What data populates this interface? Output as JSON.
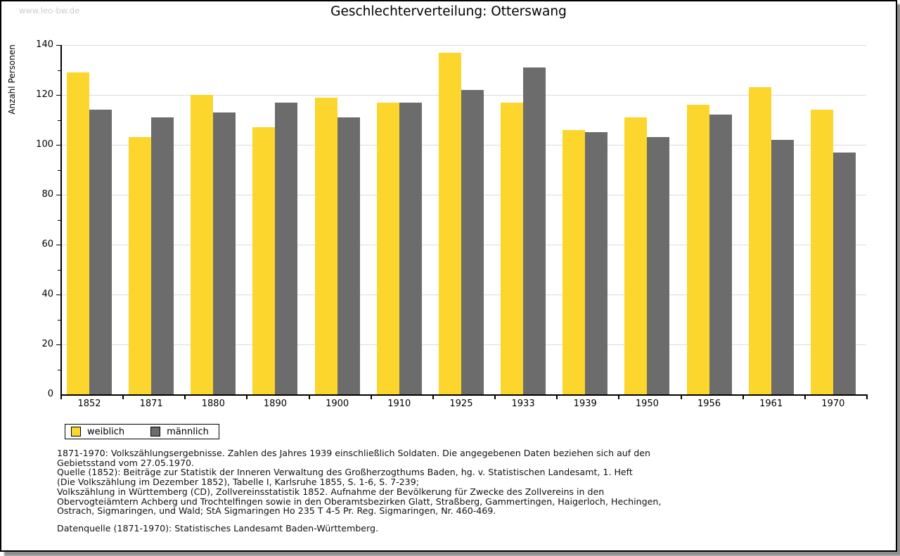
{
  "watermark": "www.leo-bw.de",
  "title": "Geschlechterverteilung: Otterswang",
  "chart_data": {
    "type": "bar",
    "categories": [
      "1852",
      "1871",
      "1880",
      "1890",
      "1900",
      "1910",
      "1925",
      "1933",
      "1939",
      "1950",
      "1956",
      "1961",
      "1970"
    ],
    "series": [
      {
        "name": "weiblich",
        "color": "#FCD52D",
        "values": [
          129,
          103,
          120,
          107,
          119,
          117,
          137,
          117,
          106,
          111,
          116,
          123,
          114
        ]
      },
      {
        "name": "männlich",
        "color": "#6C6C6C",
        "values": [
          114,
          111,
          113,
          117,
          111,
          117,
          122,
          131,
          105,
          103,
          112,
          102,
          97
        ]
      }
    ],
    "title": "Geschlechterverteilung: Otterswang",
    "xlabel": "",
    "ylabel": "Anzahl Personen",
    "ylim": [
      0,
      140
    ],
    "yticks": [
      0,
      20,
      40,
      60,
      80,
      100,
      120,
      140
    ],
    "ytick_minor_interval": 10,
    "grid": true,
    "legend_position": "bottom-left",
    "grid_color": "#dcdcdc",
    "axis_color": "#000000"
  },
  "footnotes": [
    "1871-1970: Volkszählungsergebnisse. Zahlen des Jahres 1939 einschließlich Soldaten. Die angegebenen Daten beziehen sich auf den",
    "Gebietsstand vom 27.05.1970.",
    "Quelle (1852): Beiträge zur Statistik der Inneren Verwaltung des Großherzogthums Baden, hg. v. Statistischen Landesamt, 1. Heft",
    "(Die Volkszählung im Dezember 1852), Tabelle I, Karlsruhe 1855, S. 1-6, S. 7-239;",
    "Volkszählung in Württemberg (CD), Zollvereinsstatistik 1852. Aufnahme der Bevölkerung für Zwecke des Zollvereins in den",
    "Obervogteiämtern Achberg und Trochtelfingen sowie in den Oberamtsbezirken Glatt, Straßberg, Gammertingen, Haigerloch, Hechingen,",
    "Ostrach, Sigmaringen, und Wald; StA Sigmaringen Ho 235 T 4-5 Pr. Reg. Sigmaringen, Nr. 460-469."
  ],
  "datasource": "Datenquelle (1871-1970): Statistisches Landesamt Baden-Württemberg."
}
